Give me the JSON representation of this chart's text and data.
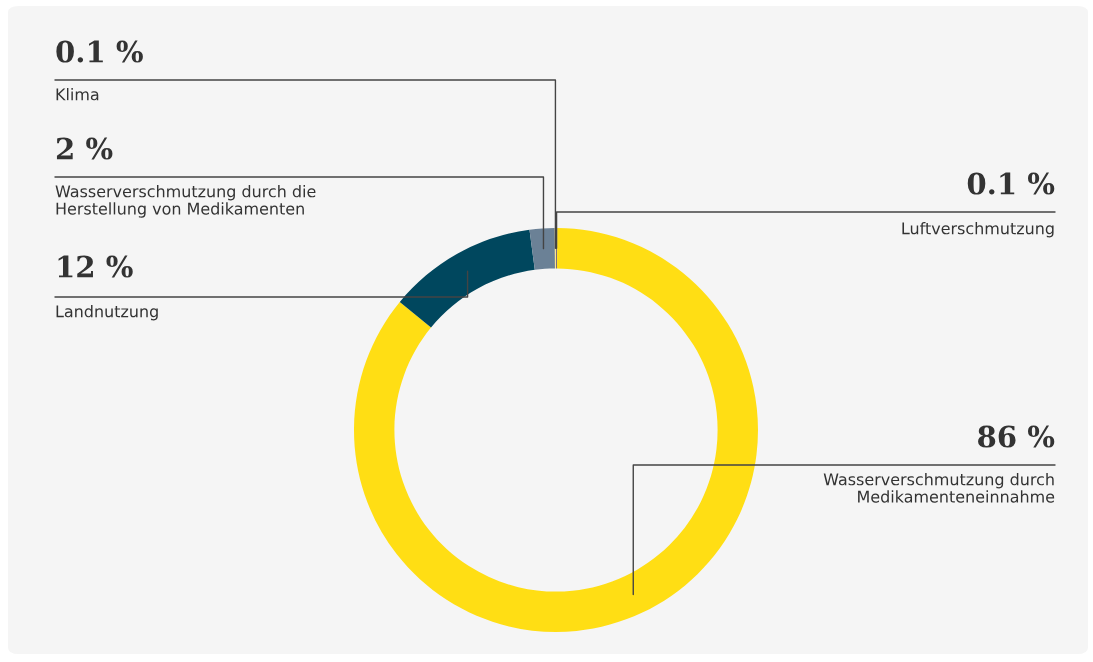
{
  "chart_data": {
    "type": "donut",
    "categories": [
      "Luftverschmutzung",
      "Wasserverschmutzung durch\nMedikamenteneinnahme",
      "Landnutzung",
      "Wasserverschmutzung durch die\nHerstellung von Medikamenten",
      "Klima"
    ],
    "values": [
      0.1,
      86,
      12,
      2,
      0.1
    ],
    "colors": [
      "#7d6e78",
      "#ffde14",
      "#00475e",
      "#6b8196",
      "#fde68a"
    ],
    "value_labels": [
      "0.1 %",
      "86 %",
      "12 %",
      "2 %",
      "0.1 %"
    ]
  }
}
